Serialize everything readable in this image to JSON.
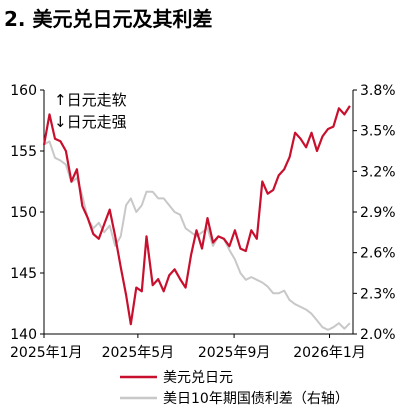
{
  "chart_data": {
    "type": "line",
    "title": "2. 美元兑日元及其利差",
    "annotations": [
      "↑日元走软",
      "↓日元走强"
    ],
    "x_ticks": [
      "2025年1月",
      "2025年5月",
      "2025年9月",
      "2026年1月"
    ],
    "x_range": [
      "2025-01-01",
      "2026-01-31"
    ],
    "y_left": {
      "ticks": [
        "160",
        "155",
        "150",
        "145",
        "140"
      ],
      "range": [
        140,
        160
      ]
    },
    "y_right": {
      "ticks": [
        "3.8%",
        "3.5%",
        "3.2%",
        "2.9%",
        "2.6%",
        "2.3%",
        "2.0%"
      ],
      "range": [
        2.0,
        3.8
      ]
    },
    "legend_position": "bottom",
    "series": [
      {
        "name": "美元兑日元",
        "axis": "left",
        "color": "#c8102e",
        "points": [
          [
            "2025-01-01",
            155.5
          ],
          [
            "2025-01-08",
            158.0
          ],
          [
            "2025-01-15",
            156.0
          ],
          [
            "2025-01-22",
            155.8
          ],
          [
            "2025-01-29",
            155.0
          ],
          [
            "2025-02-05",
            152.5
          ],
          [
            "2025-02-12",
            153.5
          ],
          [
            "2025-02-19",
            150.5
          ],
          [
            "2025-02-26",
            149.5
          ],
          [
            "2025-03-05",
            148.2
          ],
          [
            "2025-03-12",
            147.8
          ],
          [
            "2025-03-19",
            149.0
          ],
          [
            "2025-03-26",
            150.2
          ],
          [
            "2025-04-02",
            148.0
          ],
          [
            "2025-04-09",
            145.5
          ],
          [
            "2025-04-16",
            143.2
          ],
          [
            "2025-04-22",
            140.8
          ],
          [
            "2025-04-29",
            143.8
          ],
          [
            "2025-05-06",
            143.5
          ],
          [
            "2025-05-12",
            148.0
          ],
          [
            "2025-05-20",
            144.0
          ],
          [
            "2025-05-27",
            144.5
          ],
          [
            "2025-06-03",
            143.5
          ],
          [
            "2025-06-10",
            144.8
          ],
          [
            "2025-06-17",
            145.3
          ],
          [
            "2025-06-24",
            144.5
          ],
          [
            "2025-07-01",
            143.8
          ],
          [
            "2025-07-08",
            146.5
          ],
          [
            "2025-07-15",
            148.5
          ],
          [
            "2025-07-22",
            147.0
          ],
          [
            "2025-07-29",
            149.5
          ],
          [
            "2025-08-05",
            147.5
          ],
          [
            "2025-08-12",
            148.0
          ],
          [
            "2025-08-19",
            147.8
          ],
          [
            "2025-08-26",
            147.2
          ],
          [
            "2025-09-02",
            148.5
          ],
          [
            "2025-09-09",
            147.0
          ],
          [
            "2025-09-16",
            146.8
          ],
          [
            "2025-09-23",
            148.5
          ],
          [
            "2025-09-30",
            147.8
          ],
          [
            "2025-10-07",
            152.5
          ],
          [
            "2025-10-14",
            151.5
          ],
          [
            "2025-10-21",
            151.8
          ],
          [
            "2025-10-28",
            153.0
          ],
          [
            "2025-11-04",
            153.5
          ],
          [
            "2025-11-11",
            154.5
          ],
          [
            "2025-11-18",
            156.5
          ],
          [
            "2025-11-25",
            156.0
          ],
          [
            "2025-12-02",
            155.3
          ],
          [
            "2025-12-09",
            156.5
          ],
          [
            "2025-12-16",
            155.0
          ],
          [
            "2025-12-23",
            156.2
          ],
          [
            "2025-12-30",
            156.8
          ],
          [
            "2026-01-06",
            157.0
          ],
          [
            "2026-01-13",
            158.5
          ],
          [
            "2026-01-20",
            158.0
          ],
          [
            "2026-01-27",
            158.7
          ]
        ]
      },
      {
        "name": "美日10年期国债利差（右轴）",
        "axis": "right",
        "color": "#c8c8c8",
        "points": [
          [
            "2025-01-01",
            3.4
          ],
          [
            "2025-01-08",
            3.42
          ],
          [
            "2025-01-15",
            3.3
          ],
          [
            "2025-01-22",
            3.28
          ],
          [
            "2025-01-29",
            3.25
          ],
          [
            "2025-02-05",
            3.12
          ],
          [
            "2025-02-12",
            3.15
          ],
          [
            "2025-02-19",
            3.02
          ],
          [
            "2025-02-26",
            2.85
          ],
          [
            "2025-03-05",
            2.78
          ],
          [
            "2025-03-12",
            2.82
          ],
          [
            "2025-03-19",
            2.75
          ],
          [
            "2025-03-26",
            2.8
          ],
          [
            "2025-04-02",
            2.65
          ],
          [
            "2025-04-09",
            2.72
          ],
          [
            "2025-04-16",
            2.95
          ],
          [
            "2025-04-22",
            3.0
          ],
          [
            "2025-04-29",
            2.9
          ],
          [
            "2025-05-06",
            2.95
          ],
          [
            "2025-05-12",
            3.05
          ],
          [
            "2025-05-20",
            3.05
          ],
          [
            "2025-05-27",
            3.0
          ],
          [
            "2025-06-03",
            3.0
          ],
          [
            "2025-06-10",
            2.95
          ],
          [
            "2025-06-17",
            2.9
          ],
          [
            "2025-06-24",
            2.88
          ],
          [
            "2025-07-01",
            2.78
          ],
          [
            "2025-07-08",
            2.75
          ],
          [
            "2025-07-15",
            2.72
          ],
          [
            "2025-07-22",
            2.75
          ],
          [
            "2025-07-29",
            2.78
          ],
          [
            "2025-08-05",
            2.65
          ],
          [
            "2025-08-12",
            2.72
          ],
          [
            "2025-08-19",
            2.7
          ],
          [
            "2025-08-26",
            2.62
          ],
          [
            "2025-09-02",
            2.55
          ],
          [
            "2025-09-09",
            2.45
          ],
          [
            "2025-09-16",
            2.4
          ],
          [
            "2025-09-23",
            2.42
          ],
          [
            "2025-09-30",
            2.4
          ],
          [
            "2025-10-07",
            2.38
          ],
          [
            "2025-10-14",
            2.35
          ],
          [
            "2025-10-21",
            2.3
          ],
          [
            "2025-10-28",
            2.3
          ],
          [
            "2025-11-04",
            2.32
          ],
          [
            "2025-11-11",
            2.25
          ],
          [
            "2025-11-18",
            2.22
          ],
          [
            "2025-11-25",
            2.2
          ],
          [
            "2025-12-02",
            2.18
          ],
          [
            "2025-12-09",
            2.15
          ],
          [
            "2025-12-16",
            2.1
          ],
          [
            "2025-12-23",
            2.05
          ],
          [
            "2025-12-30",
            2.03
          ],
          [
            "2026-01-06",
            2.05
          ],
          [
            "2026-01-13",
            2.08
          ],
          [
            "2026-01-20",
            2.04
          ],
          [
            "2026-01-27",
            2.08
          ]
        ]
      }
    ]
  }
}
